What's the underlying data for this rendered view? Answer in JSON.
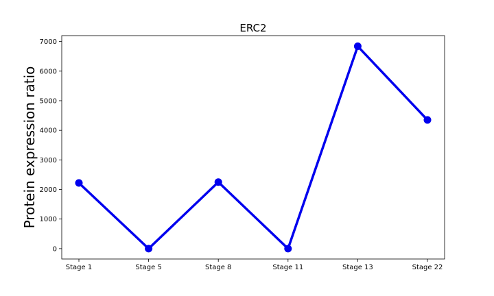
{
  "chart_data": {
    "type": "line",
    "title": "ERC2",
    "xlabel": "",
    "ylabel": "Protein expression ratio",
    "categories": [
      "Stage 1",
      "Stage 5",
      "Stage 8",
      "Stage 11",
      "Stage 13",
      "Stage 22"
    ],
    "series": [
      {
        "values": [
          2220,
          0,
          2250,
          0,
          6840,
          4350
        ],
        "color": "#0000ee"
      }
    ],
    "ylim": [
      -350,
      7200
    ],
    "yticks": [
      0,
      1000,
      2000,
      3000,
      4000,
      5000,
      6000,
      7000
    ],
    "grid": false,
    "legend": "none"
  }
}
